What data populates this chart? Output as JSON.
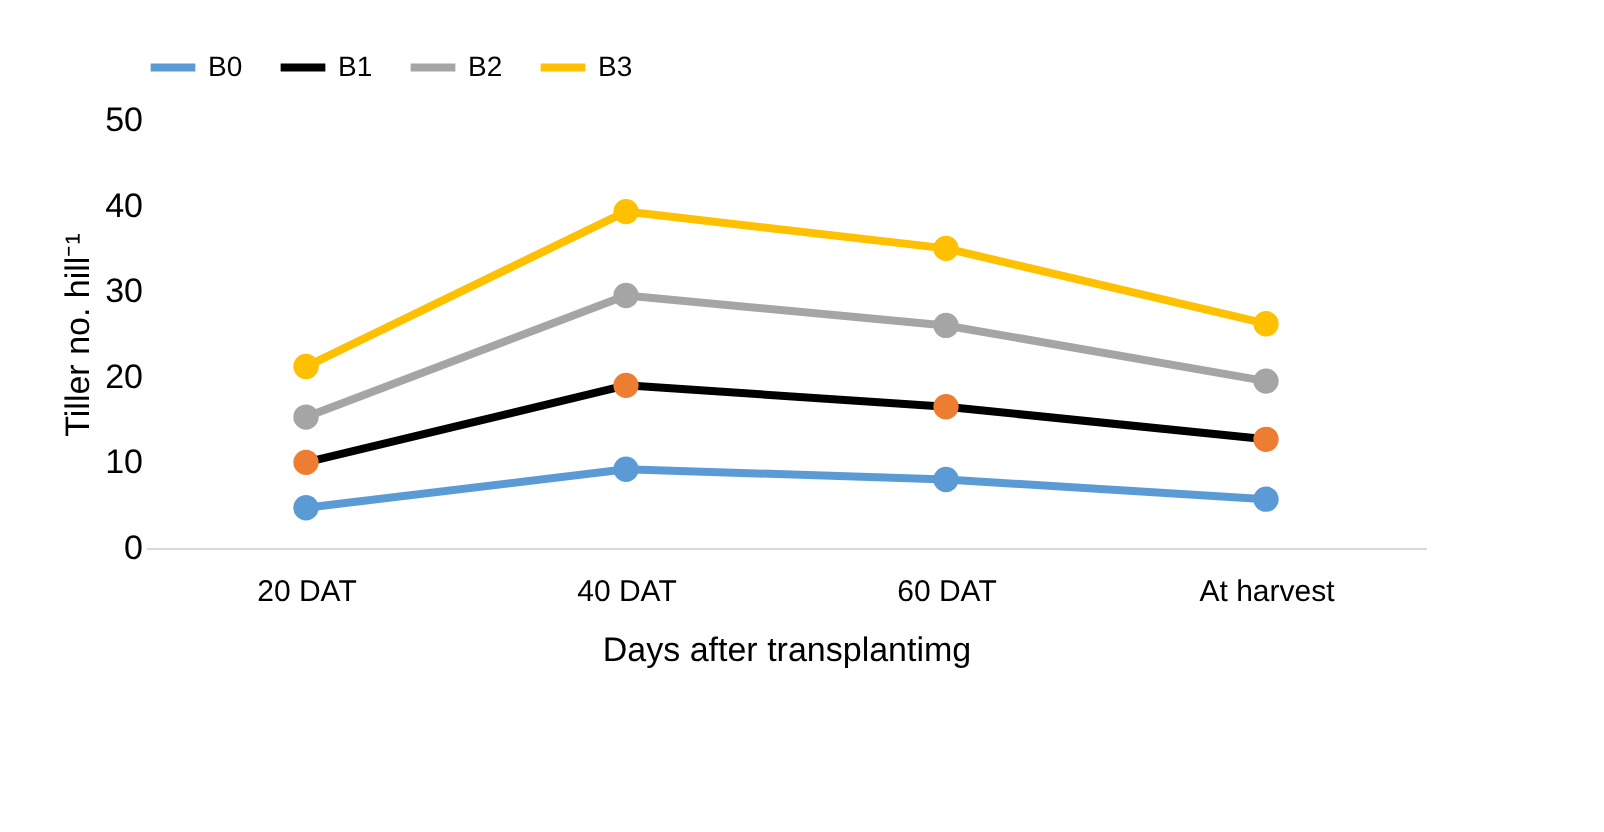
{
  "chart_data": {
    "type": "line",
    "xlabel": "Days after transplantimg",
    "ylabel": "Tiller no. hill⁻¹",
    "categories": [
      "20 DAT",
      "40 DAT",
      "60 DAT",
      "At harvest"
    ],
    "series": [
      {
        "name": "B0",
        "color": "#5b9bd5",
        "values": [
          4.7,
          9.2,
          8.0,
          5.7
        ]
      },
      {
        "name": "B1",
        "color": "#000000",
        "colors": [
          "#ed7d31",
          "#ed7d31",
          "#ed7d31",
          "#ed7d31"
        ],
        "values": [
          10.0,
          19.0,
          16.5,
          12.7
        ]
      },
      {
        "name": "B2",
        "color": "#a5a5a5",
        "values": [
          15.3,
          29.5,
          26.0,
          19.5
        ]
      },
      {
        "name": "B3",
        "color": "#ffc000",
        "values": [
          21.2,
          39.3,
          35.0,
          26.2
        ]
      }
    ],
    "ylim": [
      0,
      50
    ],
    "yticks": [
      0,
      10,
      20,
      30,
      40,
      50
    ],
    "grid": false,
    "legend": "top",
    "marker": "circle",
    "line_style": "solid"
  }
}
